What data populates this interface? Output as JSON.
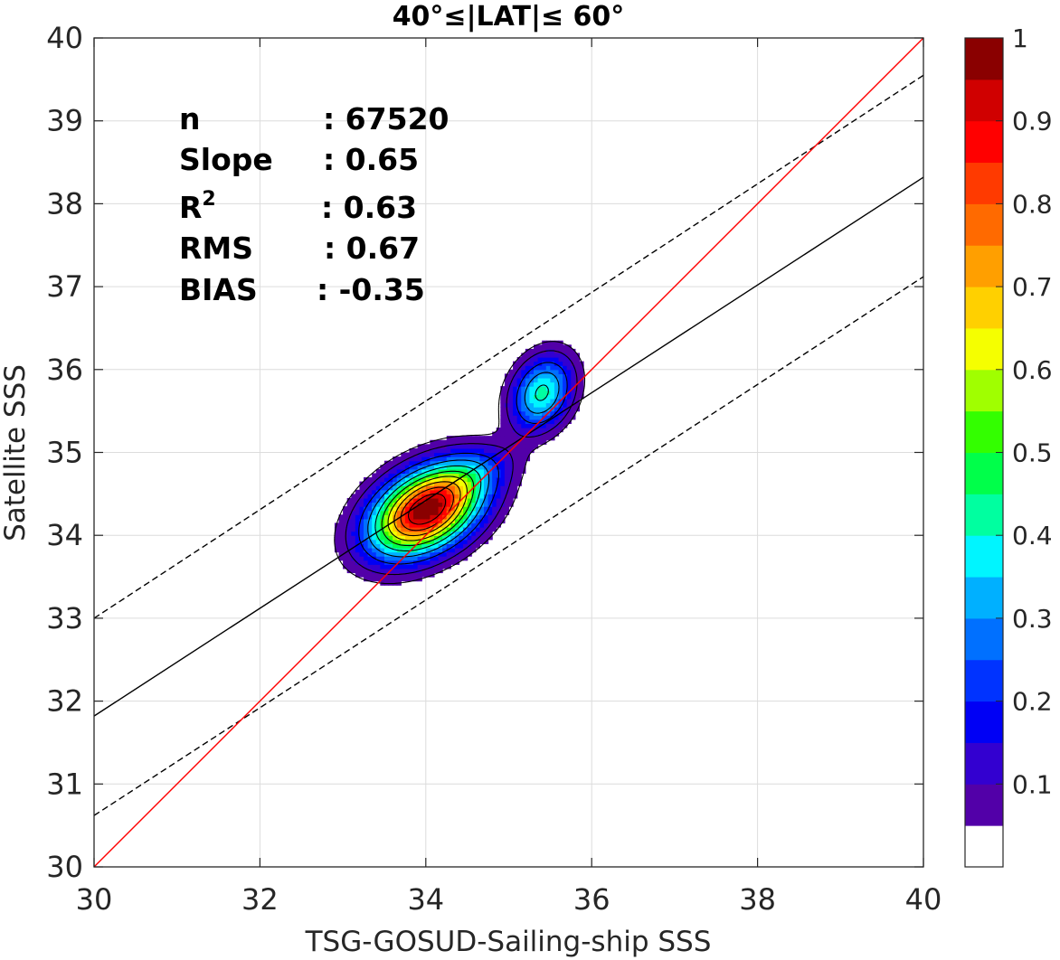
{
  "chart_data": {
    "type": "contour",
    "title": "40°≤|LAT|≤ 60°",
    "xlabel": "TSG-GOSUD-Sailing-ship SSS",
    "ylabel": "Satellite SSS",
    "xlim": [
      30,
      40
    ],
    "ylim": [
      30,
      40
    ],
    "xticks": [
      "30",
      "32",
      "34",
      "36",
      "38",
      "40"
    ],
    "yticks": [
      "30",
      "31",
      "32",
      "33",
      "34",
      "35",
      "36",
      "37",
      "38",
      "39",
      "40"
    ],
    "grid": true,
    "stats": [
      {
        "label": "n",
        "value": ": 67520"
      },
      {
        "label": "Slope",
        "value": ": 0.65"
      },
      {
        "label": "R",
        "sup": "2",
        "value": ": 0.63"
      },
      {
        "label": "RMS",
        "value": ": 0.67"
      },
      {
        "label": "BIAS",
        "value": ": -0.35"
      }
    ],
    "lines": {
      "identity": {
        "x": [
          30,
          40
        ],
        "y": [
          30,
          40
        ],
        "color": "#ff0000"
      },
      "fit": {
        "x": [
          30,
          40
        ],
        "y": [
          31.82,
          38.32
        ],
        "color": "#000000"
      },
      "fit_upper": {
        "x": [
          30,
          40
        ],
        "y": [
          33.0,
          39.55
        ],
        "color": "#000000",
        "style": "dashed"
      },
      "fit_lower": {
        "x": [
          30,
          40
        ],
        "y": [
          30.62,
          37.12
        ],
        "color": "#000000",
        "style": "dashed"
      }
    },
    "density": {
      "clusters": [
        {
          "x": 34.0,
          "y": 34.3,
          "sx": 0.45,
          "sy": 0.36,
          "rho": 0.4,
          "amp": 1.0
        },
        {
          "x": 34.55,
          "y": 34.75,
          "sx": 0.35,
          "sy": 0.22,
          "rho": 0.45,
          "amp": 0.12
        },
        {
          "x": 35.4,
          "y": 35.72,
          "sx": 0.25,
          "sy": 0.3,
          "rho": 0.25,
          "amp": 0.42
        }
      ]
    },
    "colorbar": {
      "ticks": [
        "1",
        "0.9",
        "0.8",
        "0.7",
        "0.6",
        "0.5",
        "0.4",
        "0.3",
        "0.2",
        "0.1"
      ],
      "range": [
        0,
        1
      ],
      "colors": [
        "#ffffff",
        "#5200a8",
        "#3300d0",
        "#0000f5",
        "#0033ff",
        "#0070ff",
        "#00b0ff",
        "#00f5ff",
        "#00ffa0",
        "#00ff4a",
        "#33ff00",
        "#a0ff00",
        "#f5ff00",
        "#ffd000",
        "#ff9f00",
        "#ff6a00",
        "#ff3a00",
        "#ff0000",
        "#d00000",
        "#8a0000"
      ]
    }
  }
}
